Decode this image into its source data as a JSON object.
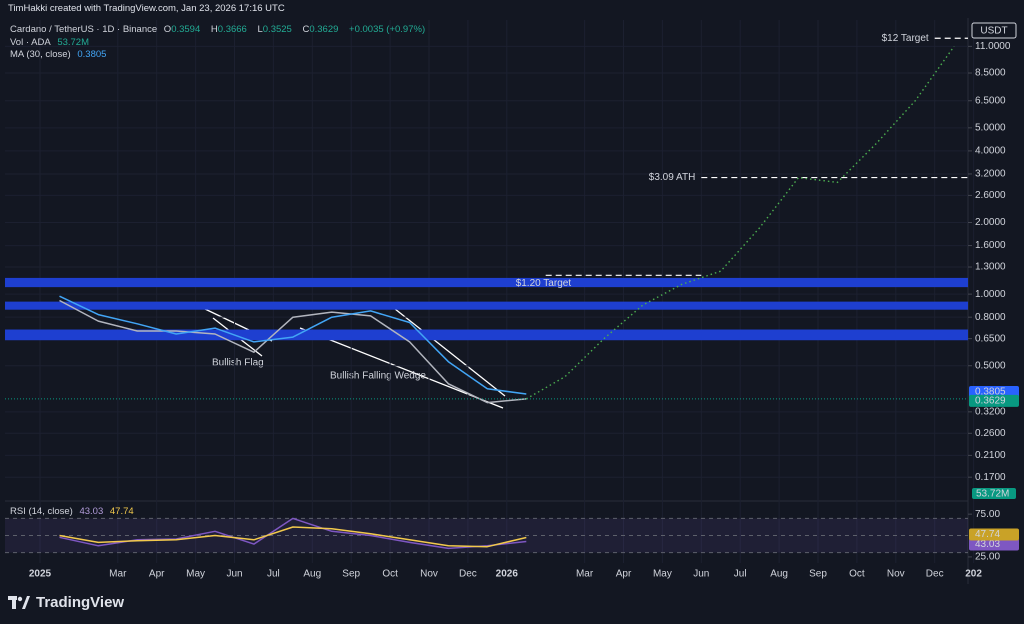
{
  "header": {
    "credit": "TimHakki created with TradingView.com, Jan 23, 2026 17:16 UTC"
  },
  "footer": {
    "brand": "TradingView"
  },
  "drawings": [
    {
      "label": "Bullish Flag"
    },
    {
      "label": "Bullish Falling Wedge"
    }
  ],
  "chart_data": [
    {
      "type": "line",
      "symbol": "Cardano / TetherUS · 1D · Binance",
      "currency": "USDT",
      "ohlc": [
        {
          "label": "O",
          "value": 0.3594
        },
        {
          "label": "H",
          "value": 0.3666
        },
        {
          "label": "L",
          "value": 0.3525
        },
        {
          "label": "C",
          "value": 0.3629
        }
      ],
      "change": "+0.0035 (+0.97%)",
      "volume": {
        "name": "Vol · ADA",
        "value": "53.72M"
      },
      "log_scale": true,
      "grid": true,
      "ylim": [
        0.139,
        14.2
      ],
      "yticks": [
        {
          "value": 11,
          "label": "11.0000"
        },
        {
          "value": 8.5,
          "label": "8.5000"
        },
        {
          "value": 6.5,
          "label": "6.5000"
        },
        {
          "value": 5,
          "label": "5.0000"
        },
        {
          "value": 4,
          "label": "4.0000"
        },
        {
          "value": 3.2,
          "label": "3.2000"
        },
        {
          "value": 2.6,
          "label": "2.6000"
        },
        {
          "value": 2,
          "label": "2.0000"
        },
        {
          "value": 1.6,
          "label": "1.6000"
        },
        {
          "value": 1.3,
          "label": "1.3000"
        },
        {
          "value": 1,
          "label": "1.0000"
        },
        {
          "value": 0.8,
          "label": "0.8000"
        },
        {
          "value": 0.65,
          "label": "0.6500"
        },
        {
          "value": 0.5,
          "label": "0.5000"
        },
        {
          "value": 0.32,
          "label": "0.3200"
        },
        {
          "value": 0.26,
          "label": "0.2600"
        },
        {
          "value": 0.21,
          "label": "0.2100"
        },
        {
          "value": 0.17,
          "label": "0.1700"
        }
      ],
      "xticks": [
        {
          "value": "2025-01",
          "label": "2025"
        },
        {
          "value": "2025-03",
          "label": "Mar"
        },
        {
          "value": "2025-04",
          "label": "Apr"
        },
        {
          "value": "2025-05",
          "label": "May"
        },
        {
          "value": "2025-06",
          "label": "Jun"
        },
        {
          "value": "2025-07",
          "label": "Jul"
        },
        {
          "value": "2025-08",
          "label": "Aug"
        },
        {
          "value": "2025-09",
          "label": "Sep"
        },
        {
          "value": "2025-10",
          "label": "Oct"
        },
        {
          "value": "2025-11",
          "label": "Nov"
        },
        {
          "value": "2025-12",
          "label": "Dec"
        },
        {
          "value": "2026-01",
          "label": "2026"
        },
        {
          "value": "2026-03",
          "label": "Mar"
        },
        {
          "value": "2026-04",
          "label": "Apr"
        },
        {
          "value": "2026-05",
          "label": "May"
        },
        {
          "value": "2026-06",
          "label": "Jun"
        },
        {
          "value": "2026-07",
          "label": "Jul"
        },
        {
          "value": "2026-08",
          "label": "Aug"
        },
        {
          "value": "2026-09",
          "label": "Sep"
        },
        {
          "value": "2026-10",
          "label": "Oct"
        },
        {
          "value": "2026-11",
          "label": "Nov"
        },
        {
          "value": "2026-12",
          "label": "Dec"
        },
        {
          "value": "2027-01",
          "label": "202"
        }
      ],
      "zones": [
        {
          "from": 1.07,
          "to": 1.17,
          "color": "#1e3fd0"
        },
        {
          "from": 0.86,
          "to": 0.93,
          "color": "#1e3fd0"
        },
        {
          "from": 0.64,
          "to": 0.71,
          "color": "#1e3fd0"
        }
      ],
      "series": [
        {
          "name": "Cardano / TetherUS · 1D · Binance",
          "color": "#b2b5be",
          "label_color": "#089981",
          "x": [
            "2025-01",
            "2025-02",
            "2025-03",
            "2025-04",
            "2025-05",
            "2025-06",
            "2025-07",
            "2025-08",
            "2025-09",
            "2025-10",
            "2025-11",
            "2025-12",
            "2026-01"
          ],
          "values": [
            0.94,
            0.77,
            0.7,
            0.7,
            0.68,
            0.57,
            0.8,
            0.84,
            0.81,
            0.63,
            0.42,
            0.35,
            0.3629
          ]
        },
        {
          "name": "MA (30, close)",
          "color": "#42a5f5",
          "label_color": "#2962ff",
          "x": [
            "2025-01",
            "2025-02",
            "2025-03",
            "2025-04",
            "2025-05",
            "2025-06",
            "2025-07",
            "2025-08",
            "2025-09",
            "2025-10",
            "2025-11",
            "2025-12",
            "2026-01"
          ],
          "values": [
            0.98,
            0.82,
            0.75,
            0.68,
            0.72,
            0.63,
            0.66,
            0.8,
            0.85,
            0.76,
            0.52,
            0.4,
            0.3805
          ]
        },
        {
          "color": "#4caf50",
          "style": "dotted",
          "x": [
            "2026-01",
            "2026-02",
            "2026-03",
            "2026-04",
            "2026-05",
            "2026-06",
            "2026-07",
            "2026-08",
            "2026-09",
            "2026-10",
            "2026-11",
            "2026-12"
          ],
          "values": [
            0.3629,
            0.45,
            0.65,
            0.9,
            1.1,
            1.25,
            1.9,
            3.09,
            2.95,
            4.3,
            6.5,
            11.0
          ]
        }
      ],
      "annotations": [
        {
          "text": "$12 Target",
          "value": 11.9,
          "from": "2026-12"
        },
        {
          "text": "$3.09 ATH",
          "value": 3.09,
          "from": "2026-06"
        },
        {
          "text": "$1.20 Target",
          "value": 1.2,
          "from": "2026-02",
          "to": "2026-06"
        }
      ]
    },
    {
      "type": "line",
      "title": "RSI (14, close)",
      "ylim": [
        17.9,
        85.7
      ],
      "yticks": [
        {
          "value": 75,
          "label": "75.00"
        },
        {
          "value": 25,
          "label": "25.00"
        }
      ],
      "hlines": [
        70,
        50,
        30
      ],
      "band_color": "#7e57c2",
      "series": [
        {
          "color": "#7e57c2",
          "x": [
            "2025-01",
            "2025-02",
            "2025-03",
            "2025-04",
            "2025-05",
            "2025-06",
            "2025-07",
            "2025-08",
            "2025-09",
            "2025-10",
            "2025-11",
            "2025-12",
            "2026-01"
          ],
          "values": [
            48,
            38,
            45,
            46,
            55,
            40,
            70,
            55,
            50,
            42,
            35,
            38,
            43.03
          ]
        },
        {
          "color": "#f2c94c",
          "x": [
            "2025-01",
            "2025-02",
            "2025-03",
            "2025-04",
            "2025-05",
            "2025-06",
            "2025-07",
            "2025-08",
            "2025-09",
            "2025-10",
            "2025-11",
            "2025-12",
            "2026-01"
          ],
          "values": [
            50,
            42,
            44,
            45,
            50,
            45,
            60,
            58,
            52,
            45,
            38,
            37,
            47.74
          ]
        }
      ]
    }
  ]
}
